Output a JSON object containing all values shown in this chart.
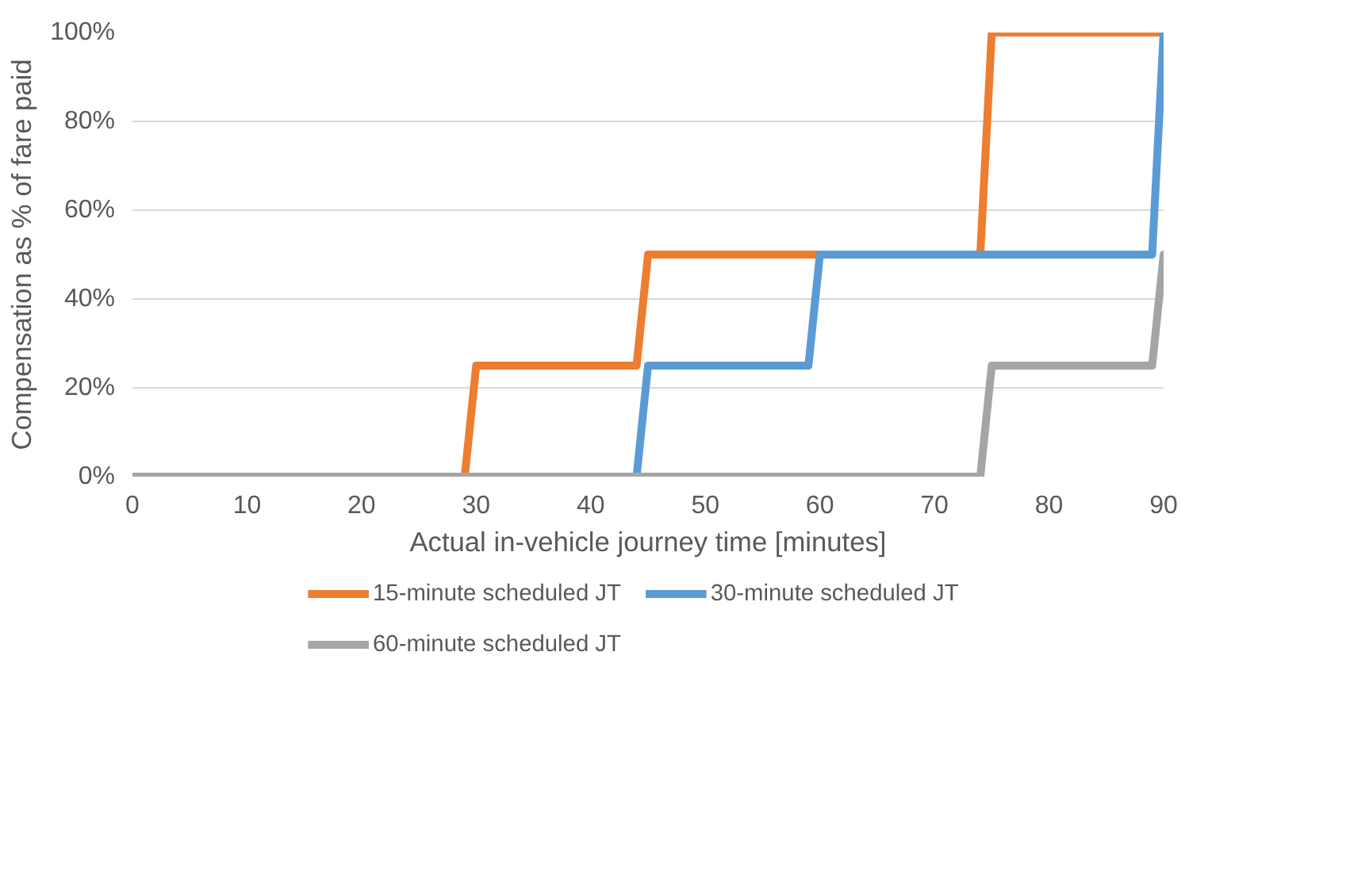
{
  "chart_data": {
    "type": "line",
    "xlabel": "Actual in-vehicle journey time [minutes]",
    "ylabel": "Compensation as % of fare paid",
    "xlim": [
      0,
      90
    ],
    "xticks": [
      0,
      10,
      20,
      30,
      40,
      50,
      60,
      70,
      80,
      90
    ],
    "ylim": [
      0,
      100
    ],
    "yticks": [
      {
        "value": 0,
        "label": "0%"
      },
      {
        "value": 20,
        "label": "20%"
      },
      {
        "value": 40,
        "label": "40%"
      },
      {
        "value": 60,
        "label": "60%"
      },
      {
        "value": 80,
        "label": "80%"
      },
      {
        "value": 100,
        "label": "100%"
      }
    ],
    "grid": "y",
    "legend": "bottom",
    "line_style": "solid",
    "marker": "none",
    "series": [
      {
        "name": "15-minute scheduled JT",
        "color": "#ed7d31",
        "x": [
          0,
          29,
          30,
          44,
          45,
          74,
          75,
          90
        ],
        "values": [
          0,
          0,
          25,
          25,
          50,
          50,
          100,
          100
        ]
      },
      {
        "name": "30-minute scheduled JT",
        "color": "#5b9bd5",
        "x": [
          0,
          44,
          45,
          59,
          60,
          89,
          90
        ],
        "values": [
          0,
          0,
          25,
          25,
          50,
          50,
          100
        ]
      },
      {
        "name": "60-minute scheduled JT",
        "color": "#a5a5a5",
        "x": [
          0,
          74,
          75,
          89,
          90
        ],
        "values": [
          0,
          0,
          25,
          25,
          50
        ]
      }
    ]
  }
}
